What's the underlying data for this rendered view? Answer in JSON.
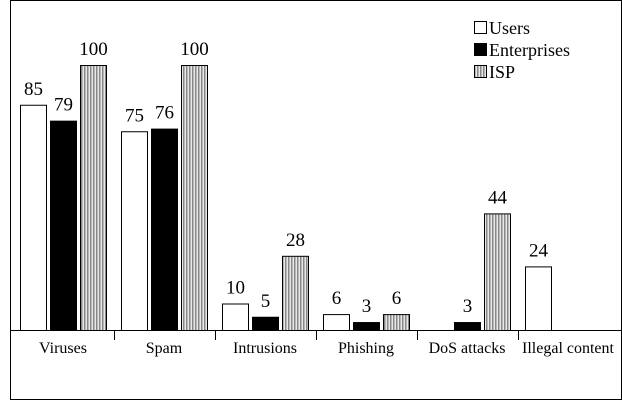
{
  "chart_data": {
    "type": "bar",
    "categories": [
      "Viruses",
      "Spam",
      "Intrusions",
      "Phishing",
      "DoS attacks",
      "Illegal content"
    ],
    "series": [
      {
        "name": "Users",
        "color": "#ffffff",
        "values": [
          85,
          75,
          10,
          6,
          null,
          24
        ]
      },
      {
        "name": "Enterprises",
        "color": "#000000",
        "values": [
          79,
          76,
          5,
          3,
          3,
          null
        ]
      },
      {
        "name": "ISP",
        "color": "#b0b0b0",
        "values": [
          100,
          100,
          28,
          6,
          44,
          null
        ]
      }
    ],
    "legend": "upper right"
  }
}
